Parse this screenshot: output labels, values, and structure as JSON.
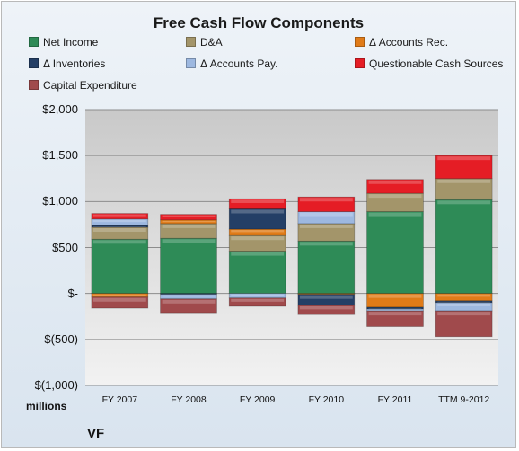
{
  "chart_data": {
    "type": "bar",
    "stacked": true,
    "title": "Free Cash Flow Components",
    "units_label": "millions",
    "company": "VF",
    "categories": [
      "FY 2007",
      "FY 2008",
      "FY 2009",
      "FY 2010",
      "FY 2011",
      "TTM 9-2012"
    ],
    "ylim": [
      -1000,
      2000
    ],
    "yticks": [
      -1000,
      -500,
      0,
      500,
      1000,
      1500,
      2000
    ],
    "ytick_labels": [
      "$(1,000)",
      "$(500)",
      "$-",
      "$500",
      "$1,000",
      "$1,500",
      "$2,000"
    ],
    "grid": true,
    "legend_position": "top",
    "series": [
      {
        "name": "Net Income",
        "color": "#2e8b57",
        "values": [
          590,
          600,
          460,
          570,
          890,
          1020
        ]
      },
      {
        "name": "D&A",
        "color": "#a3956a",
        "values": [
          130,
          160,
          170,
          190,
          200,
          230
        ]
      },
      {
        "name": "Δ Accounts Rec.",
        "color": "#e07b18",
        "values": [
          -40,
          40,
          70,
          -10,
          -150,
          -80
        ]
      },
      {
        "name": "Δ Inventories",
        "color": "#243f66",
        "values": [
          20,
          -10,
          220,
          -120,
          -20,
          -20
        ]
      },
      {
        "name": "Δ Accounts Pay.",
        "color": "#9db8e0",
        "values": [
          70,
          -50,
          -50,
          130,
          -20,
          -90
        ]
      },
      {
        "name": "Questionable Cash Sources",
        "color": "#e51d25",
        "values": [
          60,
          60,
          110,
          160,
          150,
          250
        ]
      },
      {
        "name": "Capital Expenditure",
        "color": "#a04a4c",
        "values": [
          -120,
          -150,
          -90,
          -100,
          -170,
          -280
        ]
      }
    ]
  }
}
